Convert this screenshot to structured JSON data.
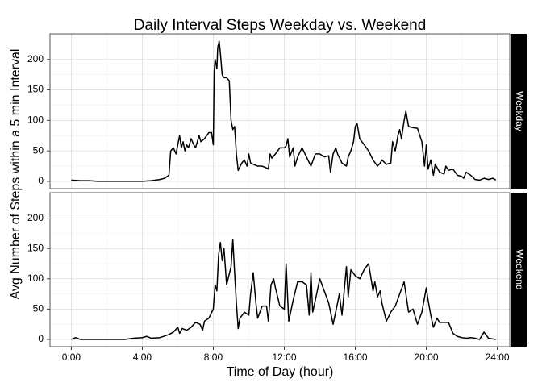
{
  "title": "Daily Interval Steps Weekday vs. Weekend",
  "xlabel": "Time of Day (hour)",
  "ylabel": "Avg Number of Steps within a 5 min Interval",
  "chart_data": [
    {
      "type": "line",
      "facet": "Weekday",
      "color": "#000000",
      "grid": true,
      "ylim": [
        -12,
        242
      ],
      "yticks": [
        0,
        50,
        100,
        150,
        200
      ],
      "x": [
        0,
        0.5,
        1,
        1.5,
        2,
        2.5,
        3,
        3.5,
        4,
        4.5,
        5,
        5.25,
        5.5,
        5.6,
        5.75,
        5.9,
        6,
        6.1,
        6.2,
        6.3,
        6.4,
        6.5,
        6.6,
        6.75,
        6.9,
        7,
        7.2,
        7.3,
        7.5,
        7.75,
        7.9,
        8,
        8.05,
        8.1,
        8.2,
        8.25,
        8.33,
        8.4,
        8.5,
        8.6,
        8.75,
        8.9,
        9,
        9.1,
        9.2,
        9.3,
        9.4,
        9.6,
        9.75,
        9.9,
        10,
        10.1,
        10.25,
        10.5,
        10.75,
        11,
        11.1,
        11.2,
        11.3,
        11.5,
        11.75,
        12,
        12.1,
        12.2,
        12.3,
        12.5,
        12.6,
        12.75,
        13,
        13.25,
        13.5,
        13.75,
        14,
        14.25,
        14.5,
        14.6,
        14.75,
        14.9,
        15,
        15.25,
        15.5,
        15.6,
        15.75,
        15.9,
        16,
        16.1,
        16.25,
        16.5,
        16.75,
        17,
        17.25,
        17.4,
        17.5,
        17.75,
        18,
        18.1,
        18.25,
        18.4,
        18.5,
        18.6,
        18.75,
        18.85,
        19,
        19.25,
        19.5,
        19.75,
        19.9,
        20,
        20.1,
        20.25,
        20.4,
        20.5,
        20.75,
        21,
        21.1,
        21.25,
        21.5,
        21.75,
        22,
        22.1,
        22.25,
        22.5,
        22.75,
        23,
        23.25,
        23.5,
        23.75,
        23.92
      ],
      "values": [
        2,
        1,
        1,
        0,
        0,
        0,
        0,
        0,
        0,
        1,
        3,
        5,
        10,
        50,
        55,
        45,
        60,
        75,
        55,
        65,
        50,
        60,
        55,
        70,
        60,
        55,
        75,
        65,
        70,
        80,
        80,
        60,
        180,
        200,
        185,
        220,
        230,
        210,
        175,
        170,
        170,
        165,
        100,
        85,
        90,
        45,
        18,
        30,
        35,
        25,
        45,
        30,
        28,
        25,
        25,
        22,
        20,
        45,
        38,
        45,
        55,
        55,
        58,
        70,
        40,
        55,
        25,
        40,
        55,
        40,
        25,
        45,
        45,
        40,
        42,
        15,
        45,
        55,
        45,
        30,
        25,
        40,
        50,
        65,
        90,
        95,
        70,
        60,
        50,
        35,
        25,
        30,
        35,
        28,
        30,
        65,
        50,
        75,
        85,
        70,
        100,
        115,
        90,
        88,
        87,
        65,
        25,
        60,
        20,
        35,
        10,
        28,
        15,
        12,
        25,
        18,
        20,
        10,
        8,
        5,
        15,
        10,
        3,
        2,
        5,
        3,
        5,
        2
      ]
    },
    {
      "type": "line",
      "facet": "Weekend",
      "color": "#000000",
      "grid": true,
      "ylim": [
        -12,
        242
      ],
      "yticks": [
        0,
        50,
        100,
        150,
        200
      ],
      "xlim": [
        -1.2,
        24.7
      ],
      "xticks": [
        {
          "value": 0,
          "label": "0:00"
        },
        {
          "value": 4,
          "label": "4:00"
        },
        {
          "value": 8,
          "label": "8:00"
        },
        {
          "value": 12,
          "label": "12:00"
        },
        {
          "value": 16,
          "label": "16:00"
        },
        {
          "value": 20,
          "label": "20:00"
        },
        {
          "value": 24,
          "label": "24:00"
        }
      ],
      "x": [
        0,
        0.25,
        0.5,
        1,
        2,
        3,
        3.5,
        4,
        4.25,
        4.5,
        5,
        5.5,
        5.75,
        6,
        6.1,
        6.25,
        6.5,
        6.75,
        7,
        7.25,
        7.4,
        7.5,
        7.75,
        8,
        8.1,
        8.2,
        8.3,
        8.4,
        8.5,
        8.6,
        8.75,
        9,
        9.1,
        9.2,
        9.3,
        9.4,
        9.5,
        9.75,
        10,
        10.1,
        10.25,
        10.4,
        10.5,
        10.75,
        11,
        11.1,
        11.25,
        11.4,
        11.5,
        11.75,
        12,
        12.1,
        12.25,
        12.5,
        12.75,
        13,
        13.25,
        13.4,
        13.5,
        13.6,
        13.75,
        14,
        14.25,
        14.5,
        14.75,
        15,
        15.1,
        15.25,
        15.5,
        15.6,
        15.75,
        16,
        16.25,
        16.5,
        16.75,
        17,
        17.1,
        17.25,
        17.4,
        17.5,
        17.75,
        18,
        18.25,
        18.5,
        18.75,
        19,
        19.25,
        19.5,
        19.75,
        20,
        20.1,
        20.25,
        20.4,
        20.6,
        20.75,
        21,
        21.25,
        21.5,
        21.75,
        22,
        22.25,
        22.5,
        22.75,
        23,
        23.25,
        23.5,
        23.92
      ],
      "values": [
        0,
        3,
        0,
        0,
        0,
        0,
        2,
        3,
        5,
        2,
        3,
        8,
        12,
        20,
        10,
        18,
        15,
        20,
        28,
        25,
        15,
        30,
        35,
        50,
        90,
        80,
        140,
        160,
        130,
        150,
        90,
        120,
        165,
        110,
        60,
        18,
        35,
        45,
        40,
        75,
        110,
        60,
        35,
        55,
        55,
        30,
        90,
        100,
        85,
        55,
        50,
        125,
        30,
        65,
        95,
        95,
        90,
        40,
        110,
        45,
        65,
        100,
        80,
        60,
        25,
        60,
        75,
        40,
        120,
        70,
        115,
        105,
        100,
        115,
        125,
        80,
        95,
        70,
        80,
        60,
        30,
        45,
        55,
        75,
        95,
        45,
        50,
        25,
        45,
        85,
        65,
        40,
        20,
        35,
        28,
        28,
        28,
        10,
        5,
        3,
        2,
        3,
        2,
        0,
        12,
        2,
        0
      ]
    }
  ]
}
